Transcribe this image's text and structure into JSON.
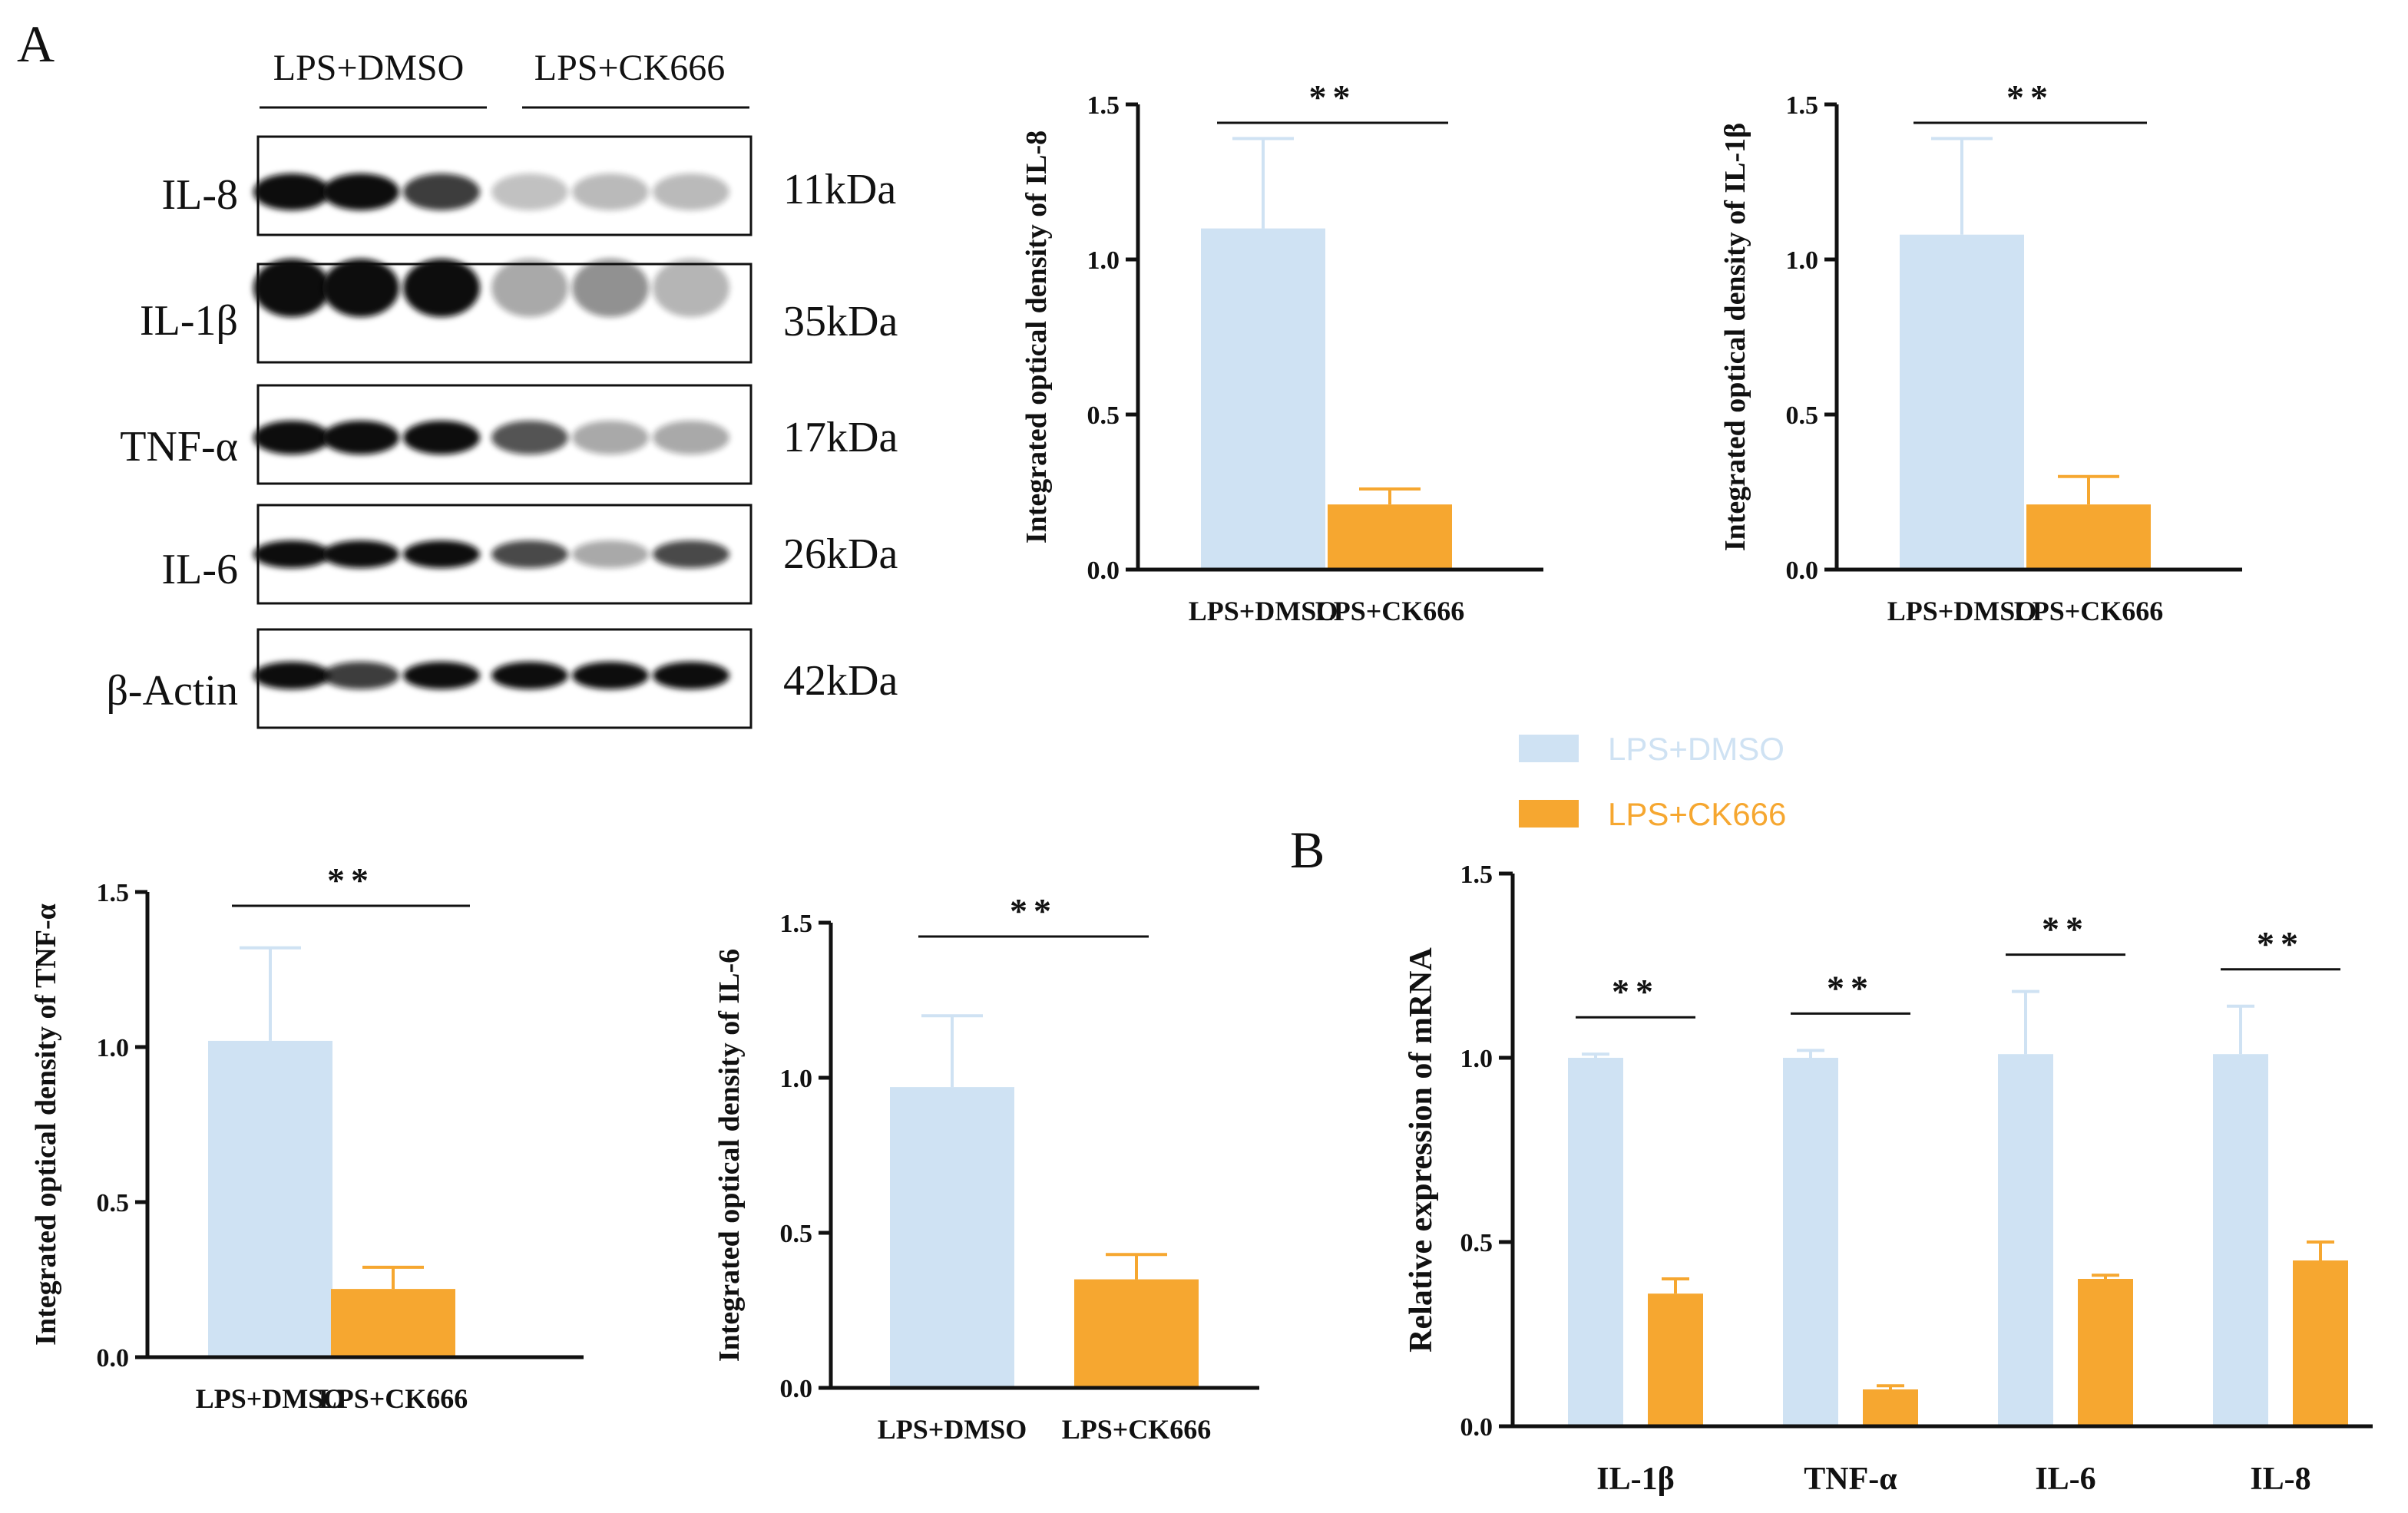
{
  "colors": {
    "dmso": "#cfe2f3",
    "ck666": "#f6a730",
    "axis": "#111111"
  },
  "panel_labels": {
    "a": "A",
    "b": "B"
  },
  "blot": {
    "groups": [
      "LPS+DMSO",
      "LPS+CK666"
    ],
    "bands": [
      {
        "name": "IL-8",
        "kda": "11kDa"
      },
      {
        "name": "IL-1β",
        "kda": "35kDa"
      },
      {
        "name": "TNF-α",
        "kda": "17kDa"
      },
      {
        "name": "IL-6",
        "kda": "26kDa"
      },
      {
        "name": "β-Actin",
        "kda": "42kDa"
      }
    ]
  },
  "chart_data": [
    {
      "type": "bar",
      "ylabel": "Integrated optical density of IL-8",
      "categories": [
        "LPS+DMSO",
        "LPS+CK666"
      ],
      "values": [
        1.1,
        0.21
      ],
      "errors": [
        0.29,
        0.05
      ],
      "ylim": [
        0,
        1.5
      ],
      "yticks": [
        "0.0",
        "0.5",
        "1.0",
        "1.5"
      ],
      "significance": "**"
    },
    {
      "type": "bar",
      "ylabel": "Integrated optical density of IL-1β",
      "categories": [
        "LPS+DMSO",
        "LPS+CK666"
      ],
      "values": [
        1.08,
        0.21
      ],
      "errors": [
        0.31,
        0.09
      ],
      "ylim": [
        0,
        1.5
      ],
      "yticks": [
        "0.0",
        "0.5",
        "1.0",
        "1.5"
      ],
      "significance": "**"
    },
    {
      "type": "bar",
      "ylabel": "Integrated optical density of TNF-α",
      "categories": [
        "LPS+DMSO",
        "LPS+CK666"
      ],
      "values": [
        1.02,
        0.22
      ],
      "errors": [
        0.3,
        0.07
      ],
      "ylim": [
        0,
        1.5
      ],
      "yticks": [
        "0.0",
        "0.5",
        "1.0",
        "1.5"
      ],
      "significance": "**"
    },
    {
      "type": "bar",
      "ylabel": "Integrated optical density of IL-6",
      "categories": [
        "LPS+DMSO",
        "LPS+CK666"
      ],
      "values": [
        0.97,
        0.35
      ],
      "errors": [
        0.23,
        0.08
      ],
      "ylim": [
        0,
        1.5
      ],
      "yticks": [
        "0.0",
        "0.5",
        "1.0",
        "1.5"
      ],
      "significance": "**"
    },
    {
      "type": "bar",
      "ylabel": "Relative expression of  mRNA",
      "categories": [
        "IL-1β",
        "TNF-α",
        "IL-6",
        "IL-8"
      ],
      "series": [
        {
          "name": "LPS+DMSO",
          "values": [
            1.0,
            1.0,
            1.01,
            1.01
          ],
          "errors": [
            0.01,
            0.02,
            0.17,
            0.13
          ]
        },
        {
          "name": "LPS+CK666",
          "values": [
            0.36,
            0.1,
            0.4,
            0.45
          ],
          "errors": [
            0.04,
            0.01,
            0.01,
            0.05
          ]
        }
      ],
      "ylim": [
        0,
        1.5
      ],
      "yticks": [
        "0.0",
        "0.5",
        "1.0",
        "1.5"
      ],
      "significance": [
        "**",
        "**",
        "**",
        "**"
      ],
      "legend": "top"
    }
  ]
}
